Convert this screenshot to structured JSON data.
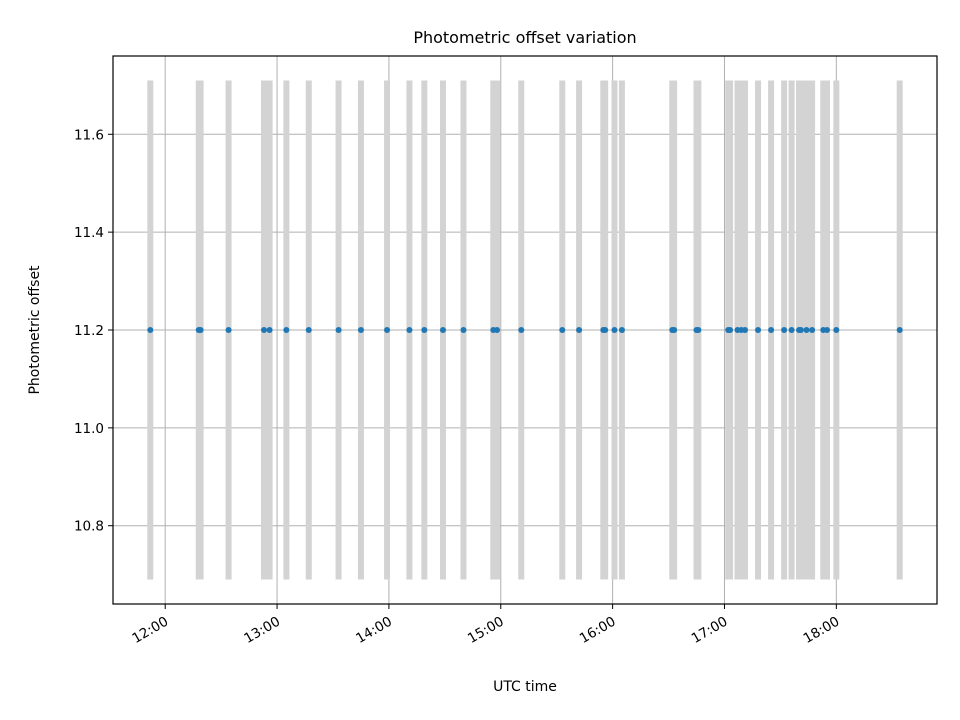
{
  "chart_data": {
    "type": "scatter",
    "title": "Photometric offset variation",
    "xlabel": "UTC time",
    "ylabel": "Photometric offset",
    "xlim": [
      "11:32",
      "18:54"
    ],
    "ylim": [
      10.64,
      11.76
    ],
    "grid": true,
    "x_ticks": [
      "12:00",
      "13:00",
      "14:00",
      "15:00",
      "16:00",
      "17:00",
      "18:00"
    ],
    "y_ticks": [
      "10.8",
      "11.0",
      "11.2",
      "11.4",
      "11.6"
    ],
    "band_range": [
      10.69,
      11.71
    ],
    "colors": {
      "points": "#1f77b4",
      "bands": "#d3d3d3",
      "grid": "#b0b0b0"
    },
    "series": [
      {
        "x": [
          "11:52",
          "12:18",
          "12:19",
          "12:34",
          "12:53",
          "12:56",
          "13:05",
          "13:17",
          "13:33",
          "13:45",
          "13:59",
          "14:11",
          "14:19",
          "14:29",
          "14:40",
          "14:56",
          "14:58",
          "15:11",
          "15:33",
          "15:42",
          "15:55",
          "15:56",
          "16:01",
          "16:05",
          "16:32",
          "16:33",
          "16:45",
          "16:46",
          "17:02",
          "17:03",
          "17:07",
          "17:09",
          "17:11",
          "17:18",
          "17:25",
          "17:32",
          "17:36",
          "17:40",
          "17:41",
          "17:44",
          "17:47",
          "17:53",
          "17:55",
          "18:00",
          "18:34"
        ],
        "y": [
          11.2,
          11.2,
          11.2,
          11.2,
          11.2,
          11.2,
          11.2,
          11.2,
          11.2,
          11.2,
          11.2,
          11.2,
          11.2,
          11.2,
          11.2,
          11.2,
          11.2,
          11.2,
          11.2,
          11.2,
          11.2,
          11.2,
          11.2,
          11.2,
          11.2,
          11.2,
          11.2,
          11.2,
          11.2,
          11.2,
          11.2,
          11.2,
          11.2,
          11.2,
          11.2,
          11.2,
          11.2,
          11.2,
          11.2,
          11.2,
          11.2,
          11.2,
          11.2,
          11.2,
          11.2
        ]
      }
    ]
  }
}
